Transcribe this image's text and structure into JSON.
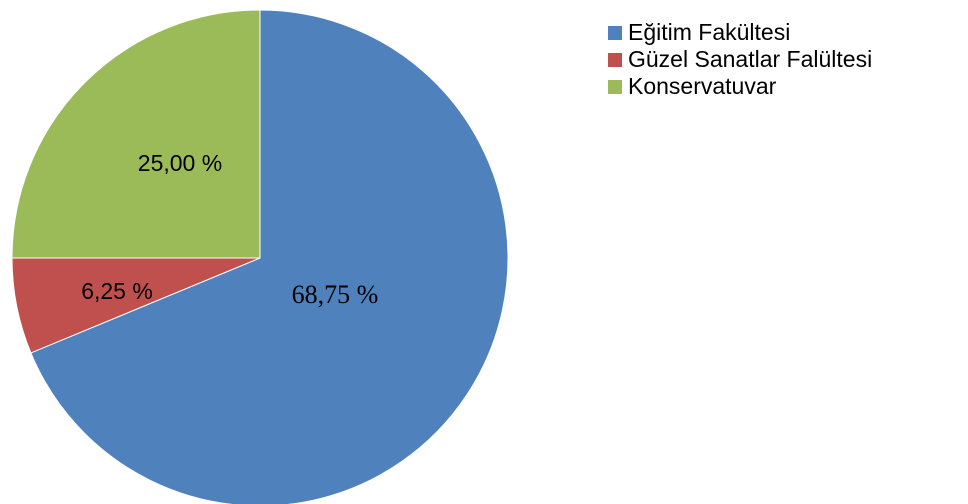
{
  "chart_data": {
    "type": "pie",
    "categories": [
      "Eğitim Fakültesi",
      "Güzel Sanatlar Falültesi",
      "Konservatuvar"
    ],
    "values": [
      68.75,
      6.25,
      25
    ],
    "value_labels": [
      "68,75 %",
      "6,25 %",
      "25,00 %"
    ],
    "colors": [
      "#4f81bd",
      "#c0504d",
      "#9bbb59"
    ],
    "legend": "right"
  }
}
